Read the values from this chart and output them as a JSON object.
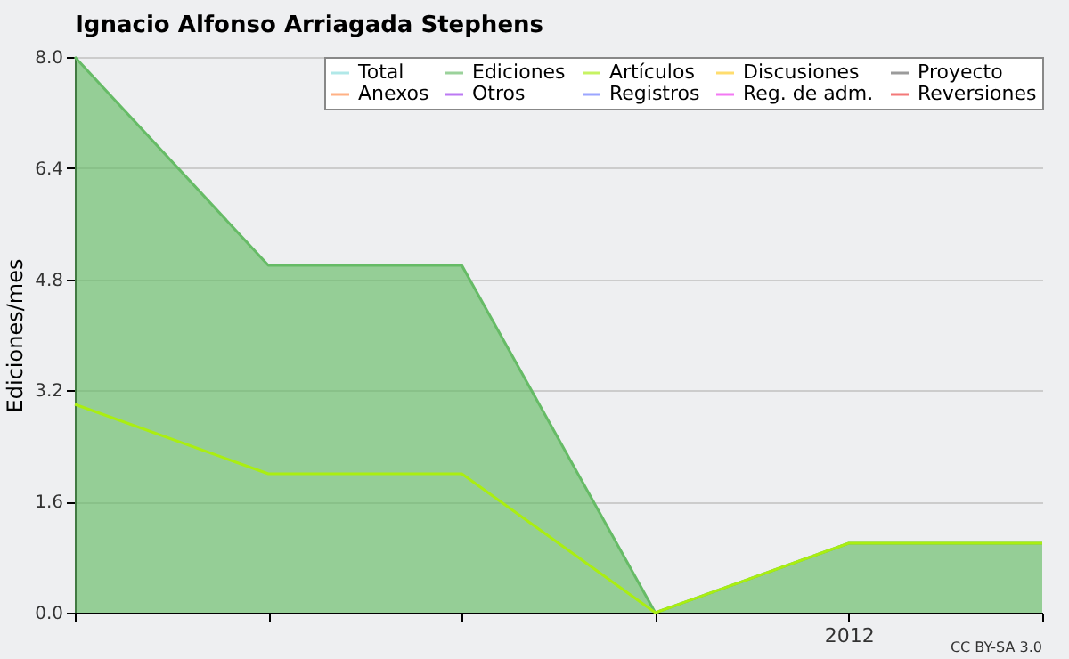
{
  "chart_data": {
    "type": "area",
    "title": "Ignacio Alfonso Arriagada Stephens",
    "ylabel": "Ediciones/mes",
    "categories": [
      null,
      null,
      null,
      null,
      "2012",
      null
    ],
    "series": [
      {
        "name": "Total",
        "color": "#88dddd",
        "type": "line",
        "values": [
          null,
          null,
          null,
          null,
          null,
          null
        ]
      },
      {
        "name": "Ediciones",
        "color": "#66bb66",
        "values": [
          8,
          5,
          5,
          0,
          1,
          1
        ]
      },
      {
        "name": "Artículos",
        "color": "#aaee11",
        "type": "line",
        "values": [
          3,
          2,
          2,
          0,
          1,
          1
        ]
      },
      {
        "name": "Discusiones",
        "color": "#ffcc22",
        "type": "line",
        "values": [
          null,
          null,
          null,
          null,
          null,
          null
        ]
      },
      {
        "name": "Proyecto",
        "color": "#666666",
        "type": "line",
        "values": [
          null,
          null,
          null,
          null,
          null,
          null
        ]
      },
      {
        "name": "Anexos",
        "color": "#ff8844",
        "type": "line",
        "values": [
          null,
          null,
          null,
          null,
          null,
          null
        ]
      },
      {
        "name": "Otros",
        "color": "#9933ee",
        "type": "line",
        "values": [
          null,
          null,
          null,
          null,
          null,
          null
        ]
      },
      {
        "name": "Registros",
        "color": "#6677ff",
        "type": "line",
        "values": [
          null,
          null,
          null,
          null,
          null,
          null
        ]
      },
      {
        "name": "Reg. de adm.",
        "color": "#ee33ee",
        "type": "line",
        "values": [
          null,
          null,
          null,
          null,
          null,
          null
        ]
      },
      {
        "name": "Reversiones",
        "color": "#ee3333",
        "type": "line",
        "values": [
          null,
          null,
          null,
          null,
          null,
          null
        ]
      }
    ],
    "ylim": [
      0,
      8
    ],
    "yticks": [
      {
        "value": 0,
        "label": "0.0"
      },
      {
        "value": 1.6,
        "label": "1.6"
      },
      {
        "value": 3.2,
        "label": "3.2"
      },
      {
        "value": 4.8,
        "label": "4.8"
      },
      {
        "value": 6.4,
        "label": "6.4"
      },
      {
        "value": 8,
        "label": "8.0"
      }
    ],
    "grid": "y",
    "legend": "top right",
    "annotations": [
      "CC BY-SA 3.0"
    ]
  }
}
